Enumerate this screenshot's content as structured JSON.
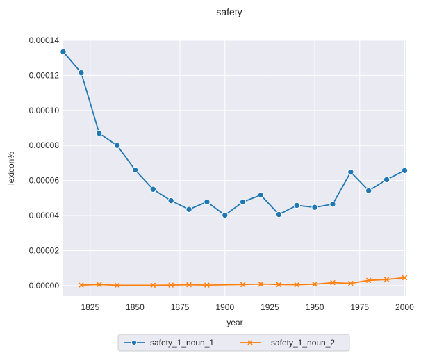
{
  "chart_data": {
    "type": "line",
    "title": "safety",
    "xlabel": "year",
    "ylabel": "lexicon%",
    "xlim": [
      1810,
      2001
    ],
    "ylim": [
      -6e-06,
      0.00014
    ],
    "xticks": [
      1825,
      1850,
      1875,
      1900,
      1925,
      1950,
      1975,
      2000
    ],
    "xtick_labels": [
      "1825",
      "1850",
      "1875",
      "1900",
      "1925",
      "1950",
      "1975",
      "2000"
    ],
    "yticks": [
      0,
      2e-05,
      4e-05,
      6e-05,
      8e-05,
      0.0001,
      0.00012,
      0.00014
    ],
    "ytick_labels": [
      "0.00000",
      "0.00002",
      "0.00004",
      "0.00006",
      "0.00008",
      "0.00010",
      "0.00012",
      "0.00014"
    ],
    "grid": true,
    "legend_placement": "bottom-center",
    "series": [
      {
        "name": "safety_1_noun_1",
        "color": "#1f77b4",
        "marker": "circle",
        "x": [
          1810,
          1820,
          1830,
          1840,
          1850,
          1860,
          1870,
          1880,
          1890,
          1900,
          1910,
          1920,
          1930,
          1940,
          1950,
          1960,
          1970,
          1980,
          1990,
          2000
        ],
        "y": [
          0.0001335,
          0.0001215,
          8.7e-05,
          8e-05,
          6.6e-05,
          5.5e-05,
          4.85e-05,
          4.35e-05,
          4.78e-05,
          4.02e-05,
          4.78e-05,
          5.17e-05,
          4.06e-05,
          4.58e-05,
          4.47e-05,
          4.65e-05,
          6.48e-05,
          5.42e-05,
          6.05e-05,
          6.57e-05
        ]
      },
      {
        "name": "safety_1_noun_2",
        "color": "#ff7f0e",
        "marker": "x",
        "x": [
          1820,
          1830,
          1840,
          1860,
          1870,
          1880,
          1890,
          1910,
          1920,
          1930,
          1940,
          1950,
          1960,
          1970,
          1980,
          1990,
          2000
        ],
        "y": [
          3e-07,
          6e-07,
          2e-07,
          2e-07,
          3e-07,
          5e-07,
          3e-07,
          6e-07,
          9e-07,
          6e-07,
          5e-07,
          8e-07,
          1.7e-06,
          1.3e-06,
          3e-06,
          3.5e-06,
          4.5e-06
        ]
      }
    ]
  }
}
